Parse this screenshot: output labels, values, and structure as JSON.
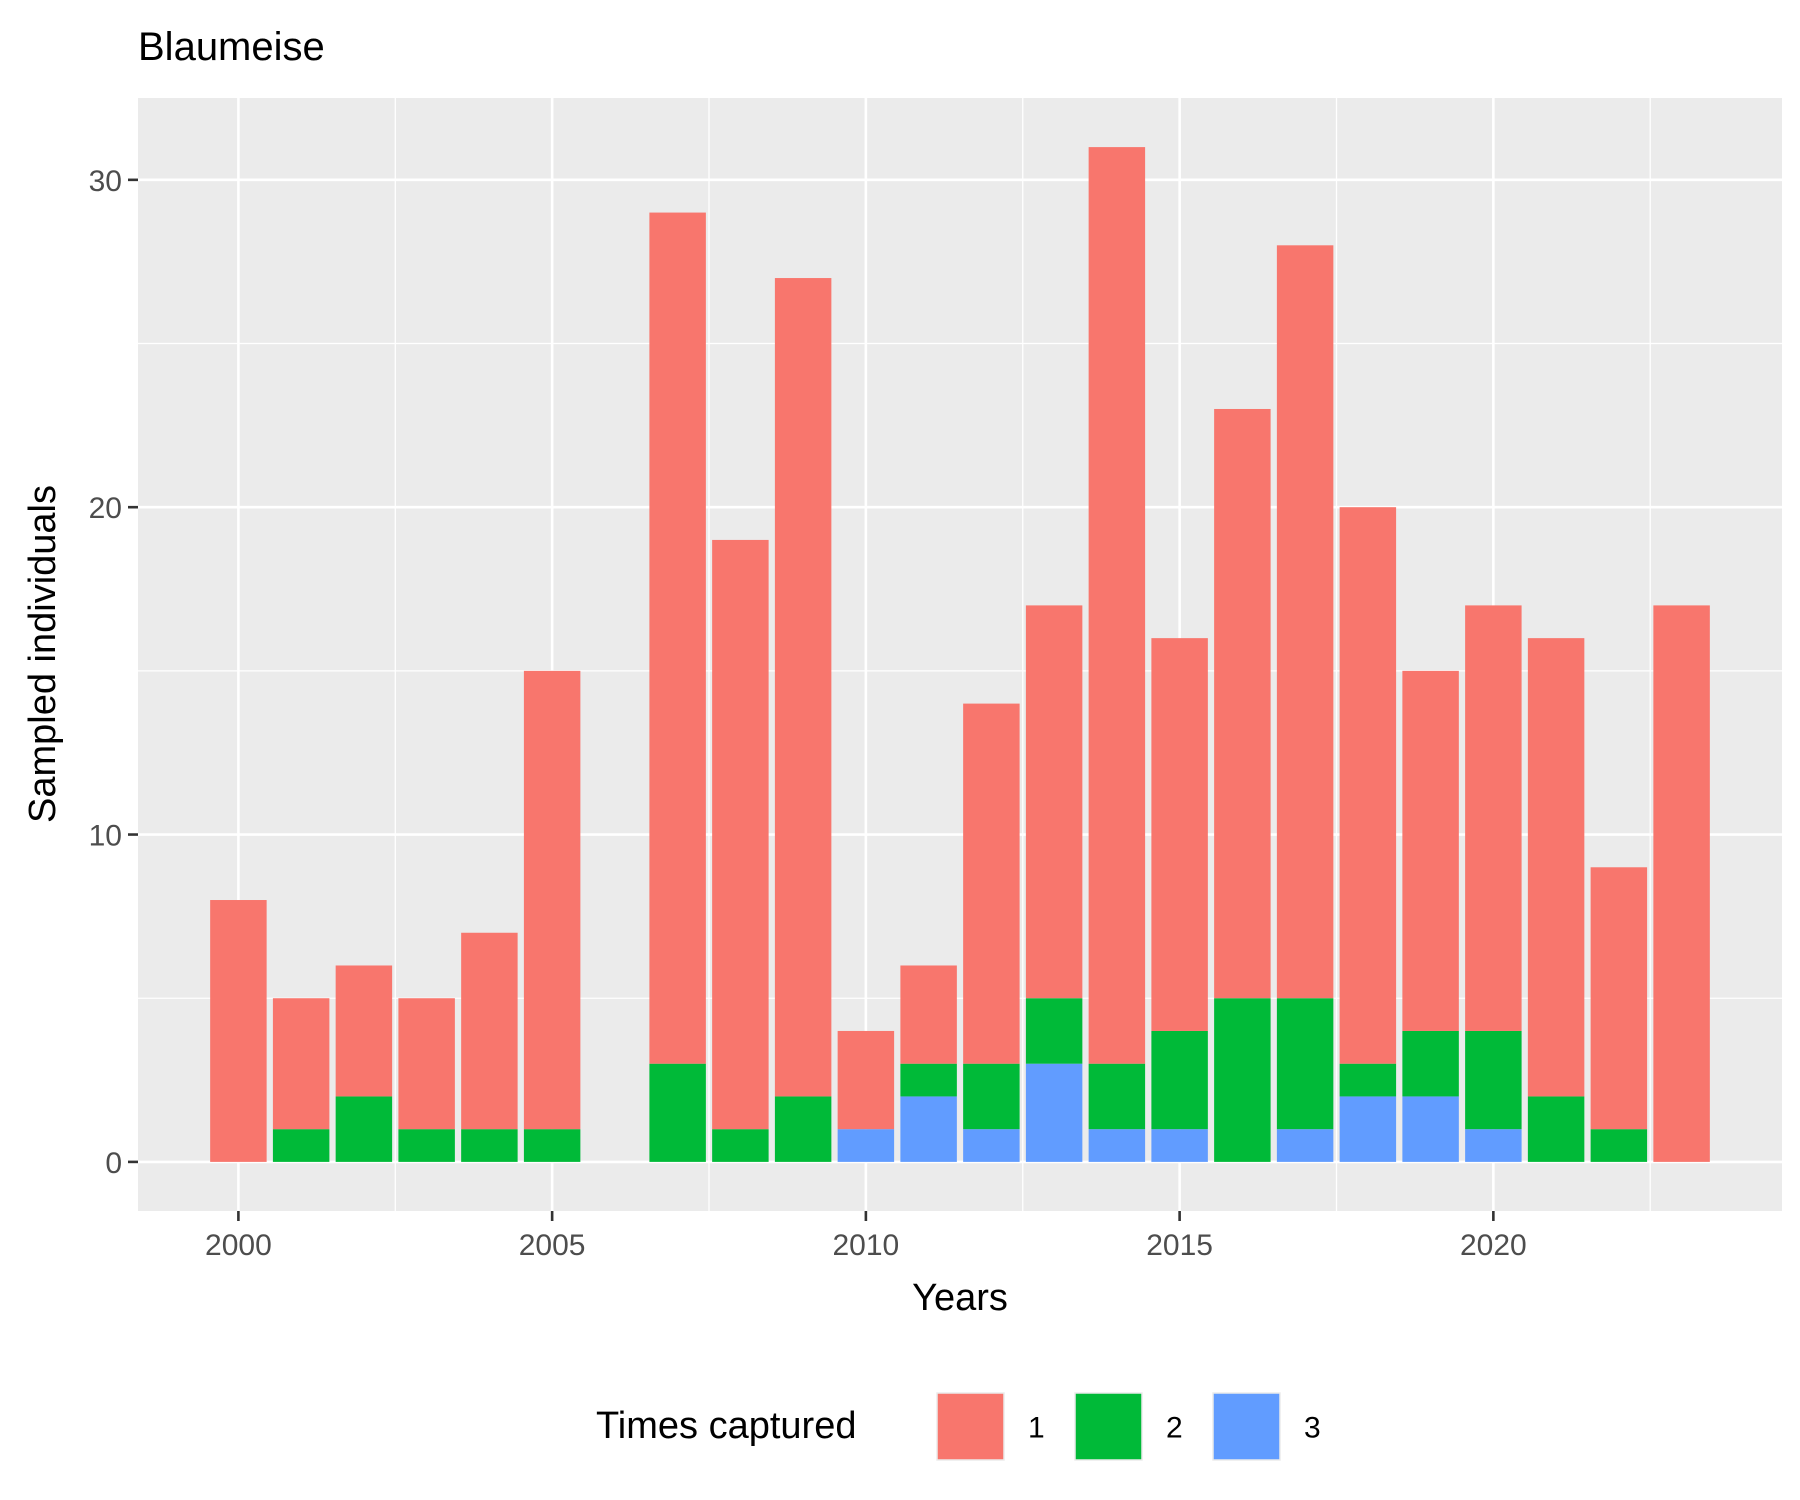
{
  "chart_data": {
    "type": "bar",
    "stacked": true,
    "title": "Blaumeise",
    "xlabel": "Years",
    "ylabel": "Sampled individuals",
    "xlim": [
      1998.4,
      2024.6
    ],
    "ylim": [
      -1.5,
      32.5
    ],
    "x_ticks": [
      2000,
      2005,
      2010,
      2015,
      2020
    ],
    "y_ticks": [
      0,
      10,
      20,
      30
    ],
    "grid": true,
    "legend": {
      "title": "Times captured",
      "position": "bottom"
    },
    "x": [
      2000,
      2001,
      2002,
      2003,
      2004,
      2005,
      2007,
      2008,
      2009,
      2010,
      2011,
      2012,
      2013,
      2014,
      2015,
      2016,
      2017,
      2018,
      2019,
      2020,
      2021,
      2022,
      2023
    ],
    "series": [
      {
        "name": "1",
        "color": "#F8766D",
        "values": [
          8,
          4,
          4,
          4,
          6,
          14,
          26,
          18,
          25,
          3,
          3,
          11,
          12,
          28,
          12,
          18,
          23,
          17,
          11,
          13,
          14,
          8,
          17
        ]
      },
      {
        "name": "2",
        "color": "#00BA38",
        "values": [
          0,
          1,
          2,
          1,
          1,
          1,
          3,
          1,
          2,
          0,
          1,
          2,
          2,
          2,
          3,
          5,
          4,
          1,
          2,
          3,
          2,
          1,
          0
        ]
      },
      {
        "name": "3",
        "color": "#619CFF",
        "values": [
          0,
          0,
          0,
          0,
          0,
          0,
          0,
          0,
          0,
          1,
          2,
          1,
          3,
          1,
          1,
          0,
          1,
          2,
          2,
          1,
          0,
          0,
          0
        ]
      }
    ]
  }
}
